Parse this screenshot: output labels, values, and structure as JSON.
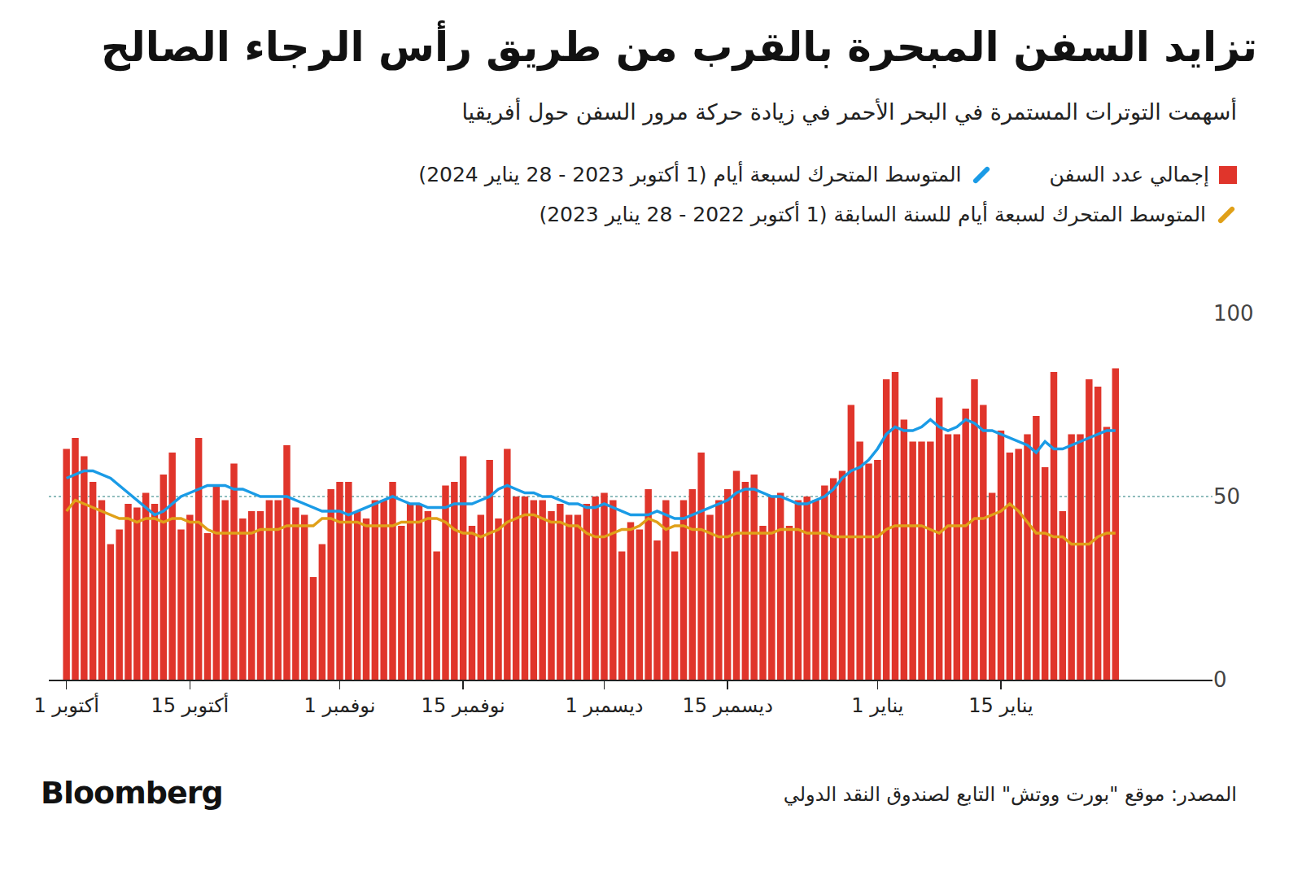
{
  "chart_data": {
    "type": "bar",
    "title": "تزايد السفن المبحرة بالقرب من طريق رأس الرجاء الصالح",
    "subtitle": "أسهمت التوترات المستمرة في البحر الأحمر في زيادة حركة مرور السفن حول أفريقيا",
    "source": "المصدر: موقع \"بورت ووتش\" التابع لصندوق النقد الدولي",
    "brand": "Bloomberg",
    "categories": [
      "1 أكتوبر",
      null,
      null,
      null,
      null,
      null,
      null,
      null,
      null,
      null,
      null,
      null,
      null,
      null,
      "15 أكتوبر",
      null,
      null,
      null,
      null,
      null,
      null,
      null,
      null,
      null,
      null,
      null,
      null,
      null,
      null,
      null,
      null,
      "1 نوفمبر",
      null,
      null,
      null,
      null,
      null,
      null,
      null,
      null,
      null,
      null,
      null,
      null,
      null,
      "15 نوفمبر",
      null,
      null,
      null,
      null,
      null,
      null,
      null,
      null,
      null,
      null,
      null,
      null,
      null,
      null,
      null,
      "1 ديسمبر",
      null,
      null,
      null,
      null,
      null,
      null,
      null,
      null,
      null,
      null,
      null,
      null,
      null,
      "15 ديسمبر",
      null,
      null,
      null,
      null,
      null,
      null,
      null,
      null,
      null,
      null,
      null,
      null,
      null,
      null,
      null,
      null,
      "1 يناير",
      null,
      null,
      null,
      null,
      null,
      null,
      null,
      null,
      null,
      null,
      null,
      null,
      null,
      "15 يناير",
      null,
      null,
      null,
      null,
      null,
      null,
      null,
      null,
      null,
      null,
      null,
      null,
      null
    ],
    "series": [
      {
        "name": "إجمالي عدد السفن",
        "type": "bar",
        "color": "#e0352b",
        "values": [
          63,
          66,
          61,
          54,
          49,
          37,
          41,
          48,
          47,
          51,
          48,
          56,
          62,
          41,
          45,
          66,
          40,
          53,
          49,
          59,
          44,
          46,
          46,
          49,
          49,
          64,
          47,
          45,
          28,
          37,
          52,
          54,
          54,
          46,
          44,
          49,
          49,
          54,
          42,
          48,
          48,
          46,
          35,
          53,
          54,
          61,
          42,
          45,
          60,
          44,
          63,
          50,
          50,
          49,
          49,
          46,
          48,
          45,
          45,
          48,
          50,
          51,
          49,
          35,
          43,
          41,
          52,
          38,
          49,
          35,
          49,
          52,
          62,
          45,
          49,
          52,
          57,
          54,
          56,
          42,
          50,
          51,
          42,
          49,
          50,
          49,
          53,
          55,
          57,
          75,
          65,
          59,
          60,
          82,
          84,
          71,
          65,
          65,
          65,
          77,
          67,
          67,
          74,
          82,
          75,
          51,
          68,
          62,
          63,
          67,
          72,
          58,
          84,
          46,
          67,
          67,
          82,
          80,
          69,
          85
        ]
      },
      {
        "name": "المتوسط المتحرك لسبعة أيام (1 أكتوبر 2023 - 28 يناير 2024)",
        "type": "line",
        "color": "#1a9be6",
        "values": [
          55,
          56,
          57,
          57,
          56,
          55,
          53,
          51,
          49,
          47,
          45,
          46,
          48,
          50,
          51,
          52,
          53,
          53,
          53,
          52,
          52,
          51,
          50,
          50,
          50,
          50,
          49,
          48,
          47,
          46,
          46,
          46,
          45,
          46,
          47,
          48,
          49,
          50,
          49,
          48,
          48,
          47,
          47,
          47,
          48,
          48,
          48,
          49,
          50,
          52,
          53,
          52,
          51,
          51,
          50,
          50,
          49,
          48,
          48,
          47,
          47,
          48,
          47,
          46,
          45,
          45,
          45,
          46,
          45,
          44,
          44,
          45,
          46,
          47,
          48,
          49,
          51,
          52,
          52,
          51,
          50,
          50,
          49,
          48,
          48,
          49,
          50,
          52,
          55,
          57,
          58,
          60,
          63,
          67,
          69,
          68,
          68,
          69,
          71,
          69,
          68,
          69,
          71,
          70,
          68,
          68,
          67,
          66,
          65,
          64,
          62,
          65,
          63,
          63,
          64,
          65,
          66,
          67,
          68,
          68
        ]
      },
      {
        "name": "المتوسط المتحرك لسبعة أيام للسنة السابقة (1 أكتوبر 2022 - 28 يناير 2023)",
        "type": "line",
        "color": "#e0a018",
        "values": [
          46,
          49,
          48,
          47,
          46,
          45,
          44,
          44,
          43,
          44,
          44,
          43,
          44,
          44,
          43,
          43,
          41,
          40,
          40,
          40,
          40,
          40,
          41,
          41,
          41,
          42,
          42,
          42,
          42,
          44,
          44,
          43,
          43,
          43,
          42,
          42,
          42,
          42,
          43,
          43,
          43,
          44,
          44,
          43,
          41,
          40,
          40,
          39,
          40,
          41,
          43,
          44,
          45,
          45,
          44,
          43,
          43,
          42,
          42,
          40,
          39,
          39,
          40,
          41,
          41,
          42,
          44,
          43,
          41,
          42,
          42,
          41,
          41,
          40,
          39,
          39,
          40,
          40,
          40,
          40,
          40,
          41,
          41,
          41,
          40,
          40,
          40,
          39,
          39,
          39,
          39,
          39,
          39,
          41,
          42,
          42,
          42,
          42,
          41,
          40,
          42,
          42,
          42,
          44,
          44,
          45,
          46,
          48,
          46,
          43,
          40,
          40,
          39,
          39,
          37,
          37,
          37,
          39,
          40,
          40
        ]
      }
    ],
    "ylim": [
      0,
      100
    ],
    "yticks": [
      0,
      50,
      100
    ],
    "grid": true
  }
}
